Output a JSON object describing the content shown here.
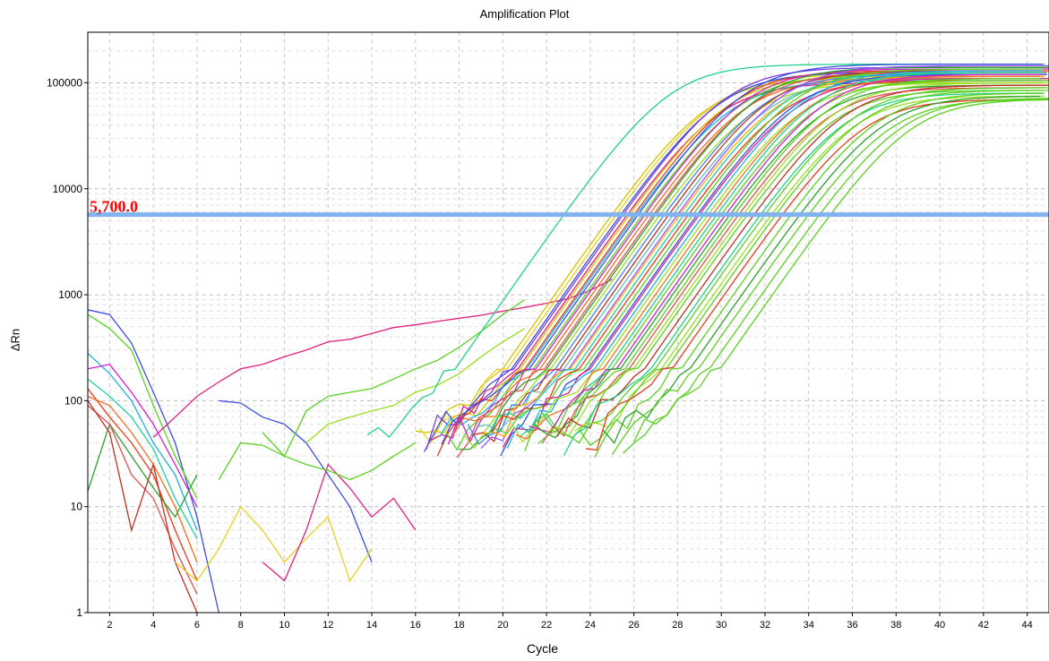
{
  "chart_data": {
    "type": "line",
    "title": "Amplification Plot",
    "xlabel": "Cycle",
    "ylabel": "ΔRn",
    "yscale": "log",
    "xlim": [
      1,
      45
    ],
    "ylim": [
      1,
      300000
    ],
    "x_ticks": [
      "2",
      "4",
      "6",
      "8",
      "10",
      "12",
      "14",
      "16",
      "18",
      "20",
      "22",
      "24",
      "26",
      "28",
      "30",
      "32",
      "34",
      "36",
      "38",
      "40",
      "42",
      "44"
    ],
    "y_ticks": [
      "1",
      "10",
      "100",
      "1000",
      "10000",
      "100000"
    ],
    "grid": true,
    "threshold": {
      "value": 5700,
      "label": "5,700.0",
      "color": "#80b3f0",
      "label_color": "#ff0000"
    },
    "series_colors": [
      "#1fd18a",
      "#d4c400",
      "#e8d020",
      "#3a4fe0",
      "#7a3ce0",
      "#e02080",
      "#e83a1a",
      "#20b0e0",
      "#5ad020",
      "#9ae020",
      "#d020d0",
      "#20d0a0",
      "#f07020",
      "#e05050",
      "#2aa02a",
      "#ffb000",
      "#4080ff",
      "#c03020",
      "#60c0c0",
      "#a050ff"
    ],
    "amplification_curves": [
      {
        "ct": 22.8,
        "plateau": 150000,
        "color": "#1fd18a"
      },
      {
        "ct": 25.0,
        "plateau": 110000,
        "color": "#d4c400"
      },
      {
        "ct": 25.2,
        "plateau": 120000,
        "color": "#e8d020"
      },
      {
        "ct": 25.4,
        "plateau": 125000,
        "color": "#3a4fe0"
      },
      {
        "ct": 25.5,
        "plateau": 140000,
        "color": "#7a3ce0"
      },
      {
        "ct": 25.7,
        "plateau": 100000,
        "color": "#e02080"
      },
      {
        "ct": 25.8,
        "plateau": 115000,
        "color": "#d4c400"
      },
      {
        "ct": 26.0,
        "plateau": 130000,
        "color": "#e83a1a"
      },
      {
        "ct": 26.1,
        "plateau": 105000,
        "color": "#20b0e0"
      },
      {
        "ct": 26.2,
        "plateau": 150000,
        "color": "#3a4fe0"
      },
      {
        "ct": 26.4,
        "plateau": 120000,
        "color": "#5ad020"
      },
      {
        "ct": 26.5,
        "plateau": 135000,
        "color": "#d020d0"
      },
      {
        "ct": 26.7,
        "plateau": 110000,
        "color": "#f07020"
      },
      {
        "ct": 26.9,
        "plateau": 125000,
        "color": "#e05050"
      },
      {
        "ct": 27.0,
        "plateau": 140000,
        "color": "#2aa02a"
      },
      {
        "ct": 27.2,
        "plateau": 100000,
        "color": "#9ae020"
      },
      {
        "ct": 27.4,
        "plateau": 120000,
        "color": "#4080ff"
      },
      {
        "ct": 27.6,
        "plateau": 130000,
        "color": "#c03020"
      },
      {
        "ct": 27.8,
        "plateau": 110000,
        "color": "#60c0c0"
      },
      {
        "ct": 28.0,
        "plateau": 145000,
        "color": "#a050ff"
      },
      {
        "ct": 28.1,
        "plateau": 115000,
        "color": "#ffb000"
      },
      {
        "ct": 28.3,
        "plateau": 125000,
        "color": "#20d0a0"
      },
      {
        "ct": 28.5,
        "plateau": 105000,
        "color": "#e83a1a"
      },
      {
        "ct": 28.7,
        "plateau": 135000,
        "color": "#5ad020"
      },
      {
        "ct": 28.9,
        "plateau": 120000,
        "color": "#3a4fe0"
      },
      {
        "ct": 29.0,
        "plateau": 110000,
        "color": "#e02080"
      },
      {
        "ct": 29.2,
        "plateau": 130000,
        "color": "#20b0e0"
      },
      {
        "ct": 29.4,
        "plateau": 100000,
        "color": "#9ae020"
      },
      {
        "ct": 29.6,
        "plateau": 115000,
        "color": "#f07020"
      },
      {
        "ct": 29.8,
        "plateau": 125000,
        "color": "#1fd18a"
      },
      {
        "ct": 30.0,
        "plateau": 105000,
        "color": "#5ad020"
      },
      {
        "ct": 30.2,
        "plateau": 120000,
        "color": "#d020d0"
      },
      {
        "ct": 30.4,
        "plateau": 95000,
        "color": "#2aa02a"
      },
      {
        "ct": 30.6,
        "plateau": 110000,
        "color": "#5ad020"
      },
      {
        "ct": 30.8,
        "plateau": 90000,
        "color": "#e05050"
      },
      {
        "ct": 31.0,
        "plateau": 100000,
        "color": "#9ae020"
      },
      {
        "ct": 31.2,
        "plateau": 85000,
        "color": "#5ad020"
      },
      {
        "ct": 31.5,
        "plateau": 95000,
        "color": "#c03020"
      },
      {
        "ct": 31.8,
        "plateau": 80000,
        "color": "#1fd18a"
      },
      {
        "ct": 32.0,
        "plateau": 90000,
        "color": "#5ad020"
      },
      {
        "ct": 32.3,
        "plateau": 75000,
        "color": "#9ae020"
      },
      {
        "ct": 32.5,
        "plateau": 85000,
        "color": "#5ad020"
      },
      {
        "ct": 32.8,
        "plateau": 70000,
        "color": "#e83a1a"
      },
      {
        "ct": 33.2,
        "plateau": 80000,
        "color": "#5ad020"
      },
      {
        "ct": 33.6,
        "plateau": 75000,
        "color": "#2aa02a"
      },
      {
        "ct": 34.0,
        "plateau": 70000,
        "color": "#5ad020"
      },
      {
        "ct": 34.5,
        "plateau": 72000,
        "color": "#5ad020"
      },
      {
        "ct": 35.0,
        "plateau": 70000,
        "color": "#5ad020"
      }
    ],
    "noise_traces": [
      {
        "color": "#3a4fe0",
        "points": [
          [
            1,
            720
          ],
          [
            2,
            650
          ],
          [
            3,
            350
          ],
          [
            4,
            120
          ],
          [
            5,
            40
          ],
          [
            6,
            8
          ],
          [
            7,
            1
          ]
        ]
      },
      {
        "color": "#5ad020",
        "points": [
          [
            1,
            650
          ],
          [
            2,
            480
          ],
          [
            3,
            300
          ],
          [
            4,
            90
          ],
          [
            5,
            30
          ],
          [
            6,
            12
          ]
        ]
      },
      {
        "color": "#e02080",
        "points": [
          [
            4,
            45
          ],
          [
            5,
            70
          ],
          [
            6,
            110
          ],
          [
            7,
            150
          ],
          [
            8,
            200
          ],
          [
            9,
            220
          ],
          [
            10,
            260
          ],
          [
            11,
            300
          ],
          [
            12,
            360
          ],
          [
            13,
            380
          ],
          [
            14,
            430
          ],
          [
            15,
            490
          ],
          [
            16,
            520
          ],
          [
            17,
            560
          ],
          [
            18,
            600
          ],
          [
            19,
            640
          ],
          [
            20,
            700
          ],
          [
            21,
            760
          ],
          [
            22,
            830
          ],
          [
            23,
            920
          ],
          [
            24,
            1100
          ],
          [
            25,
            1400
          ]
        ]
      },
      {
        "color": "#3a4fe0",
        "points": [
          [
            7,
            100
          ],
          [
            8,
            95
          ],
          [
            9,
            70
          ],
          [
            10,
            60
          ],
          [
            11,
            40
          ],
          [
            12,
            20
          ],
          [
            13,
            10
          ],
          [
            14,
            3
          ]
        ]
      },
      {
        "color": "#5ad020",
        "points": [
          [
            9,
            50
          ],
          [
            10,
            30
          ],
          [
            11,
            80
          ],
          [
            12,
            110
          ],
          [
            13,
            120
          ],
          [
            14,
            130
          ],
          [
            15,
            160
          ],
          [
            16,
            200
          ],
          [
            17,
            240
          ],
          [
            18,
            320
          ],
          [
            19,
            450
          ],
          [
            20,
            650
          ],
          [
            21,
            900
          ]
        ]
      },
      {
        "color": "#9ae020",
        "points": [
          [
            11,
            40
          ],
          [
            12,
            60
          ],
          [
            13,
            70
          ],
          [
            14,
            80
          ],
          [
            15,
            90
          ],
          [
            16,
            120
          ],
          [
            17,
            140
          ],
          [
            18,
            180
          ],
          [
            19,
            260
          ],
          [
            20,
            360
          ],
          [
            21,
            480
          ]
        ]
      },
      {
        "color": "#20b0e0",
        "points": [
          [
            1,
            280
          ],
          [
            2,
            180
          ],
          [
            3,
            100
          ],
          [
            4,
            40
          ],
          [
            5,
            20
          ],
          [
            6,
            6
          ]
        ]
      },
      {
        "color": "#e83a1a",
        "points": [
          [
            1,
            130
          ],
          [
            2,
            70
          ],
          [
            3,
            40
          ],
          [
            4,
            20
          ],
          [
            5,
            6
          ],
          [
            6,
            2
          ]
        ]
      },
      {
        "color": "#f07020",
        "points": [
          [
            1,
            110
          ],
          [
            2,
            90
          ],
          [
            3,
            50
          ],
          [
            4,
            25
          ],
          [
            5,
            10
          ],
          [
            6,
            3
          ]
        ]
      },
      {
        "color": "#d020d0",
        "points": [
          [
            1,
            200
          ],
          [
            2,
            220
          ],
          [
            3,
            120
          ],
          [
            4,
            60
          ],
          [
            5,
            25
          ],
          [
            6,
            10
          ]
        ]
      },
      {
        "color": "#2aa02a",
        "points": [
          [
            1,
            14
          ],
          [
            2,
            60
          ],
          [
            3,
            30
          ],
          [
            4,
            15
          ],
          [
            5,
            8
          ],
          [
            6,
            20
          ]
        ]
      },
      {
        "color": "#e05050",
        "points": [
          [
            1,
            90
          ],
          [
            2,
            60
          ],
          [
            3,
            20
          ],
          [
            4,
            12
          ],
          [
            5,
            4
          ],
          [
            6,
            1.5
          ]
        ]
      },
      {
        "color": "#c03020",
        "points": [
          [
            1,
            100
          ],
          [
            2,
            50
          ],
          [
            3,
            6
          ],
          [
            4,
            25
          ],
          [
            5,
            3
          ],
          [
            6,
            1
          ]
        ]
      },
      {
        "color": "#20d0a0",
        "points": [
          [
            1,
            160
          ],
          [
            2,
            110
          ],
          [
            3,
            70
          ],
          [
            4,
            35
          ],
          [
            5,
            12
          ],
          [
            6,
            5
          ]
        ]
      },
      {
        "color": "#e8d020",
        "points": [
          [
            5,
            3
          ],
          [
            6,
            2
          ],
          [
            7,
            4
          ],
          [
            8,
            10
          ],
          [
            9,
            6
          ],
          [
            10,
            3
          ],
          [
            11,
            5
          ],
          [
            12,
            8
          ],
          [
            13,
            2
          ],
          [
            14,
            4
          ]
        ]
      },
      {
        "color": "#e02080",
        "points": [
          [
            9,
            3
          ],
          [
            10,
            2
          ],
          [
            11,
            6
          ],
          [
            12,
            25
          ],
          [
            13,
            15
          ],
          [
            14,
            8
          ],
          [
            15,
            12
          ],
          [
            16,
            6
          ]
        ]
      },
      {
        "color": "#5ad020",
        "points": [
          [
            7,
            18
          ],
          [
            8,
            40
          ],
          [
            9,
            38
          ],
          [
            10,
            30
          ],
          [
            11,
            25
          ],
          [
            12,
            22
          ],
          [
            13,
            18
          ],
          [
            14,
            22
          ],
          [
            15,
            30
          ],
          [
            16,
            40
          ]
        ]
      }
    ]
  }
}
